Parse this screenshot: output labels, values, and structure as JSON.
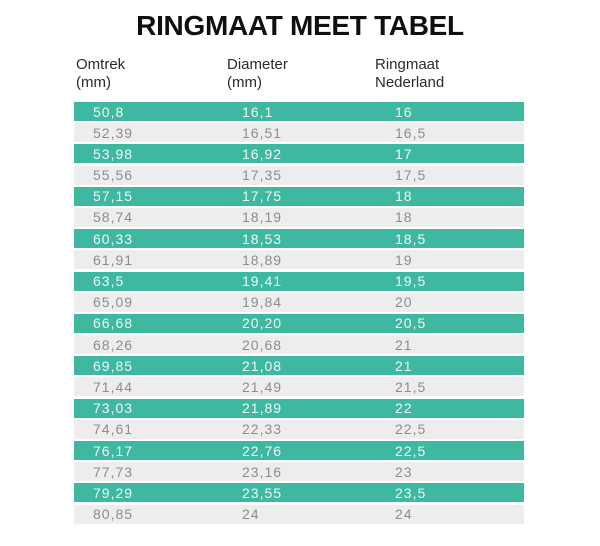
{
  "title": "RINGMAAT MEET TABEL",
  "columns": [
    {
      "line1": "Omtrek",
      "line2": "(mm)"
    },
    {
      "line1": "Diameter",
      "line2": "(mm)"
    },
    {
      "line1": "Ringmaat",
      "line2": "Nederland"
    }
  ],
  "rows": [
    {
      "omtrek": "50,8",
      "diameter": "16,1",
      "ringmaat": "16"
    },
    {
      "omtrek": "52,39",
      "diameter": "16,51",
      "ringmaat": "16,5"
    },
    {
      "omtrek": "53,98",
      "diameter": "16,92",
      "ringmaat": "17"
    },
    {
      "omtrek": "55,56",
      "diameter": "17,35",
      "ringmaat": "17,5"
    },
    {
      "omtrek": "57,15",
      "diameter": "17,75",
      "ringmaat": "18"
    },
    {
      "omtrek": "58,74",
      "diameter": "18,19",
      "ringmaat": "18"
    },
    {
      "omtrek": "60,33",
      "diameter": "18,53",
      "ringmaat": "18,5"
    },
    {
      "omtrek": "61,91",
      "diameter": "18,89",
      "ringmaat": "19"
    },
    {
      "omtrek": "63,5",
      "diameter": "19,41",
      "ringmaat": "19,5"
    },
    {
      "omtrek": "65,09",
      "diameter": "19,84",
      "ringmaat": "20"
    },
    {
      "omtrek": "66,68",
      "diameter": "20,20",
      "ringmaat": "20,5"
    },
    {
      "omtrek": "68,26",
      "diameter": "20,68",
      "ringmaat": "21"
    },
    {
      "omtrek": "69,85",
      "diameter": "21,08",
      "ringmaat": "21"
    },
    {
      "omtrek": "71,44",
      "diameter": "21,49",
      "ringmaat": "21,5"
    },
    {
      "omtrek": "73,03",
      "diameter": "21,89",
      "ringmaat": "22"
    },
    {
      "omtrek": "74,61",
      "diameter": "22,33",
      "ringmaat": "22,5"
    },
    {
      "omtrek": "76,17",
      "diameter": "22,76",
      "ringmaat": "22,5"
    },
    {
      "omtrek": "77,73",
      "diameter": "23,16",
      "ringmaat": "23"
    },
    {
      "omtrek": "79,29",
      "diameter": "23,55",
      "ringmaat": "23,5"
    },
    {
      "omtrek": "80,85",
      "diameter": "24",
      "ringmaat": "24"
    }
  ],
  "colors": {
    "row_teal": "#3eb8a1",
    "row_light": "#ededed",
    "text_on_teal": "#eff7f4",
    "text_on_light": "#8d8d8d",
    "header_text": "#2b2b2b",
    "title_text": "#0f0f0f",
    "background": "#ffffff"
  },
  "chart_data": {
    "type": "table",
    "title": "RINGMAAT MEET TABEL",
    "columns": [
      "Omtrek (mm)",
      "Diameter (mm)",
      "Ringmaat Nederland"
    ],
    "rows": [
      [
        "50,8",
        "16,1",
        "16"
      ],
      [
        "52,39",
        "16,51",
        "16,5"
      ],
      [
        "53,98",
        "16,92",
        "17"
      ],
      [
        "55,56",
        "17,35",
        "17,5"
      ],
      [
        "57,15",
        "17,75",
        "18"
      ],
      [
        "58,74",
        "18,19",
        "18"
      ],
      [
        "60,33",
        "18,53",
        "18,5"
      ],
      [
        "61,91",
        "18,89",
        "19"
      ],
      [
        "63,5",
        "19,41",
        "19,5"
      ],
      [
        "65,09",
        "19,84",
        "20"
      ],
      [
        "66,68",
        "20,20",
        "20,5"
      ],
      [
        "68,26",
        "20,68",
        "21"
      ],
      [
        "69,85",
        "21,08",
        "21"
      ],
      [
        "71,44",
        "21,49",
        "21,5"
      ],
      [
        "73,03",
        "21,89",
        "22"
      ],
      [
        "74,61",
        "22,33",
        "22,5"
      ],
      [
        "76,17",
        "22,76",
        "22,5"
      ],
      [
        "77,73",
        "23,16",
        "23"
      ],
      [
        "79,29",
        "23,55",
        "23,5"
      ],
      [
        "80,85",
        "24",
        "24"
      ]
    ]
  }
}
